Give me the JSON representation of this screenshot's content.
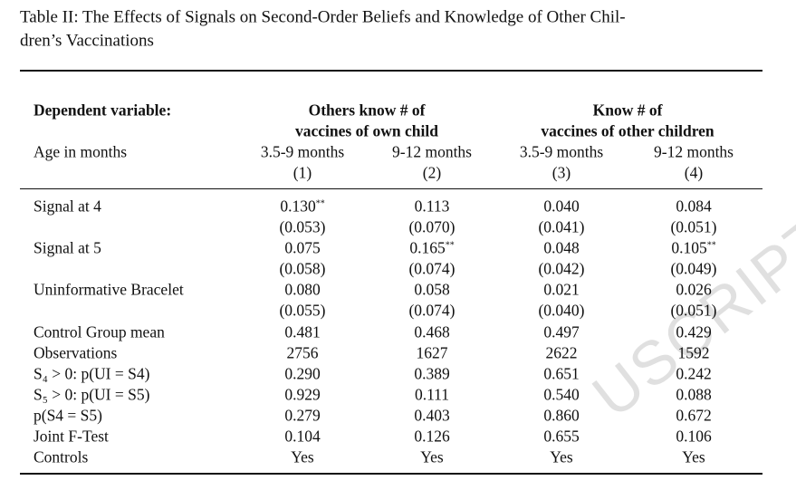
{
  "title": [
    "Table II: The Effects of Signals on Second-Order Beliefs and Knowledge of Other Chil-",
    "dren’s Vaccinations"
  ],
  "header": {
    "dependent_label": "Dependent variable:",
    "groups": [
      {
        "lines": [
          "Others know # of",
          "vaccines of own child"
        ]
      },
      {
        "lines": [
          "Know # of",
          "vaccines of other children"
        ]
      }
    ],
    "age_label": "Age in months",
    "columns": [
      {
        "age": "3.5-9 months",
        "number": "(1)"
      },
      {
        "age": "9-12 months",
        "number": "(2)"
      },
      {
        "age": "3.5-9 months",
        "number": "(3)"
      },
      {
        "age": "9-12 months",
        "number": "(4)"
      }
    ]
  },
  "coefficient_rows": [
    {
      "label": "Signal at 4",
      "estimates": [
        {
          "value": "0.130",
          "stars": "**"
        },
        {
          "value": "0.113"
        },
        {
          "value": "0.040"
        },
        {
          "value": "0.084"
        }
      ],
      "std_errors": [
        "(0.053)",
        "(0.070)",
        "(0.041)",
        "(0.051)"
      ]
    },
    {
      "label": "Signal at 5",
      "estimates": [
        {
          "value": "0.075"
        },
        {
          "value": "0.165",
          "stars": "**"
        },
        {
          "value": "0.048"
        },
        {
          "value": "0.105",
          "stars": "**"
        }
      ],
      "std_errors": [
        "(0.058)",
        "(0.074)",
        "(0.042)",
        "(0.049)"
      ]
    },
    {
      "label": "Uninformative Bracelet",
      "estimates": [
        {
          "value": "0.080"
        },
        {
          "value": "0.058"
        },
        {
          "value": "0.021"
        },
        {
          "value": "0.026"
        }
      ],
      "std_errors": [
        "(0.055)",
        "(0.074)",
        "(0.040)",
        "(0.051)"
      ]
    }
  ],
  "stat_rows": [
    {
      "label": "Control Group mean",
      "cells": [
        "0.481",
        "0.468",
        "0.497",
        "0.429"
      ]
    },
    {
      "label": "Observations",
      "cells": [
        "2756",
        "1627",
        "2622",
        "1592"
      ]
    },
    {
      "label": "S₄ > 0: p(UI = S4)",
      "cells": [
        "0.290",
        "0.389",
        "0.651",
        "0.242"
      ]
    },
    {
      "label": "S₅ > 0: p(UI = S5)",
      "cells": [
        "0.929",
        "0.111",
        "0.540",
        "0.088"
      ]
    },
    {
      "label": "p(S4 = S5)",
      "cells": [
        "0.279",
        "0.403",
        "0.860",
        "0.672"
      ]
    },
    {
      "label": "Joint F-Test",
      "cells": [
        "0.104",
        "0.126",
        "0.655",
        "0.106"
      ]
    },
    {
      "label": "Controls",
      "cells": [
        "Yes",
        "Yes",
        "Yes",
        "Yes"
      ]
    }
  ],
  "watermark": "USCRIPT"
}
